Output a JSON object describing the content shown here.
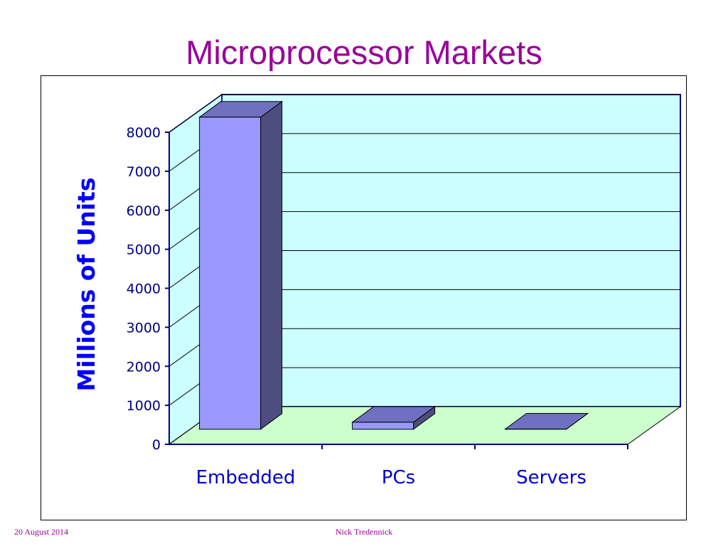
{
  "slide": {
    "title": "Microprocessor Markets",
    "footer_date": "20 August 2014",
    "footer_author": "Nick Tredennick"
  },
  "colors": {
    "title": "#990099",
    "wall": "#ccffff",
    "floor": "#ccffcc",
    "bar_front": "#9999ff",
    "bar_side": "#4d4d80",
    "bar_top": "#7070c0",
    "axis": "#000080",
    "label": "#0000ff"
  },
  "chart_data": {
    "type": "bar",
    "style": "3d",
    "categories": [
      "Embedded",
      "PCs",
      "Servers"
    ],
    "values": [
      8000,
      180,
      5
    ],
    "ylabel": "Millions of Units",
    "ylim": [
      0,
      8000
    ],
    "yticks": [
      "0",
      "1000",
      "2000",
      "3000",
      "4000",
      "5000",
      "6000",
      "7000",
      "8000"
    ],
    "grid": true,
    "legend": "none"
  }
}
